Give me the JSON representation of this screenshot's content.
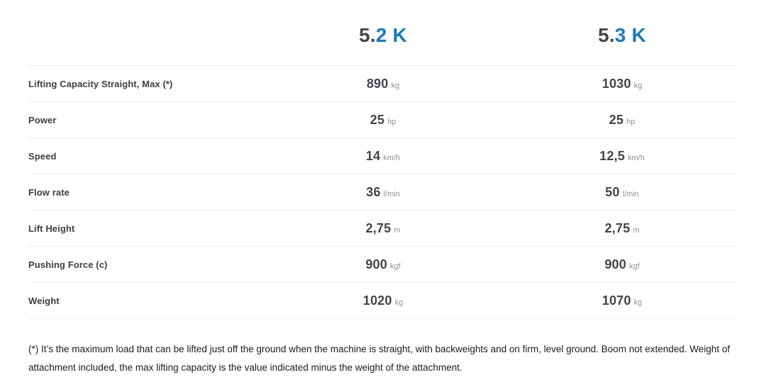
{
  "table": {
    "columns": [
      {
        "prefix": "5.",
        "highlight": "2 K"
      },
      {
        "prefix": "5.",
        "highlight": "3 K"
      }
    ],
    "rows": [
      {
        "label": "Lifting Capacity Straight, Max (*)",
        "values": [
          {
            "num": "890",
            "unit": "kg"
          },
          {
            "num": "1030",
            "unit": "kg"
          }
        ]
      },
      {
        "label": "Power",
        "values": [
          {
            "num": "25",
            "unit": "hp"
          },
          {
            "num": "25",
            "unit": "hp"
          }
        ]
      },
      {
        "label": "Speed",
        "values": [
          {
            "num": "14",
            "unit": "km/h"
          },
          {
            "num": "12,5",
            "unit": "km/h"
          }
        ]
      },
      {
        "label": "Flow rate",
        "values": [
          {
            "num": "36",
            "unit": "l/min"
          },
          {
            "num": "50",
            "unit": "l/min"
          }
        ]
      },
      {
        "label": "Lift Height",
        "values": [
          {
            "num": "2,75",
            "unit": "m"
          },
          {
            "num": "2,75",
            "unit": "m"
          }
        ]
      },
      {
        "label": "Pushing Force (c)",
        "values": [
          {
            "num": "900",
            "unit": "kgf"
          },
          {
            "num": "900",
            "unit": "kgf"
          }
        ]
      },
      {
        "label": "Weight",
        "values": [
          {
            "num": "1020",
            "unit": "kg"
          },
          {
            "num": "1070",
            "unit": "kg"
          }
        ]
      }
    ]
  },
  "footnote": "(*) It’s the maximum load that can be lifted just off the ground when the machine is straight, with backweights and on firm, level ground. Boom not extended. Weight of attachment included, the max lifting capacity is the value indicated minus the weight of the attachment.",
  "colors": {
    "accent_blue": "#1879c0",
    "dark_text": "#3f454a",
    "unit_gray": "#8b9299",
    "divider": "#ececec"
  }
}
